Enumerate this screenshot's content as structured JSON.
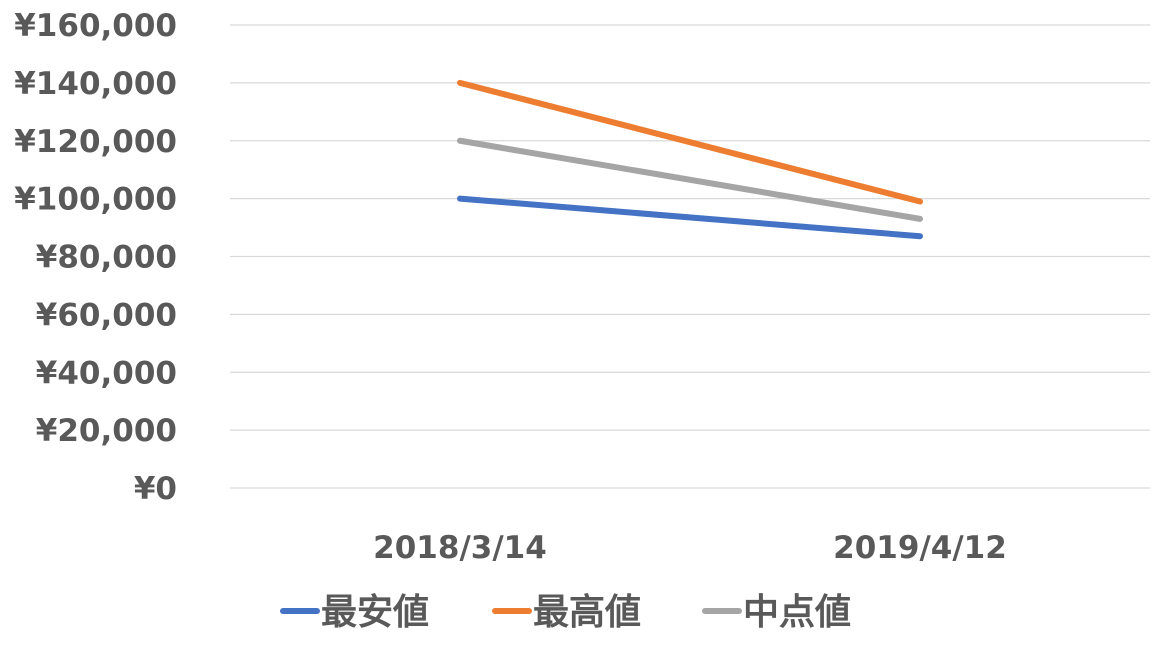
{
  "chart_data": {
    "type": "line",
    "categories": [
      "2018/3/14",
      "2019/4/12"
    ],
    "series": [
      {
        "name": "最安値",
        "values": [
          100000,
          87000
        ],
        "color": "#4472C4"
      },
      {
        "name": "最高値",
        "values": [
          140000,
          99000
        ],
        "color": "#ED7D31"
      },
      {
        "name": "中点値",
        "values": [
          120000,
          93000
        ],
        "color": "#A5A5A5"
      }
    ],
    "ylim": [
      0,
      160000
    ],
    "yticks": [
      0,
      20000,
      40000,
      60000,
      80000,
      100000,
      120000,
      140000,
      160000
    ],
    "ytick_labels": [
      "¥0",
      "¥20,000",
      "¥40,000",
      "¥60,000",
      "¥80,000",
      "¥100,000",
      "¥120,000",
      "¥140,000",
      "¥160,000"
    ],
    "grid": true,
    "legend_position": "bottom",
    "title": "",
    "xlabel": "",
    "ylabel": ""
  }
}
